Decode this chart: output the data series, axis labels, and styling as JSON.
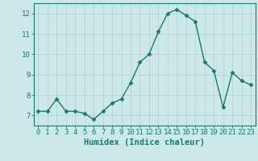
{
  "x": [
    0,
    1,
    2,
    3,
    4,
    5,
    6,
    7,
    8,
    9,
    10,
    11,
    12,
    13,
    14,
    15,
    16,
    17,
    18,
    19,
    20,
    21,
    22,
    23
  ],
  "y": [
    7.2,
    7.2,
    7.8,
    7.2,
    7.2,
    7.1,
    6.8,
    7.2,
    7.6,
    7.8,
    8.6,
    9.6,
    10.0,
    11.1,
    12.0,
    12.2,
    11.9,
    11.6,
    9.6,
    9.2,
    7.4,
    9.1,
    8.7,
    8.5
  ],
  "line_color": "#1a7a6e",
  "marker": "D",
  "marker_size": 2.5,
  "bg_color": "#cce8e8",
  "grid_color": "#b8d8d8",
  "xlabel": "Humidex (Indice chaleur)",
  "xlim": [
    -0.5,
    23.5
  ],
  "ylim": [
    6.5,
    12.5
  ],
  "yticks": [
    7,
    8,
    9,
    10,
    11,
    12
  ],
  "xticks": [
    0,
    1,
    2,
    3,
    4,
    5,
    6,
    7,
    8,
    9,
    10,
    11,
    12,
    13,
    14,
    15,
    16,
    17,
    18,
    19,
    20,
    21,
    22,
    23
  ],
  "tick_color": "#1a7a6e",
  "spine_color": "#1a7a6e",
  "label_color": "#1a7a6e",
  "tick_fontsize": 6.5,
  "xlabel_fontsize": 7.5,
  "linewidth": 1.0
}
